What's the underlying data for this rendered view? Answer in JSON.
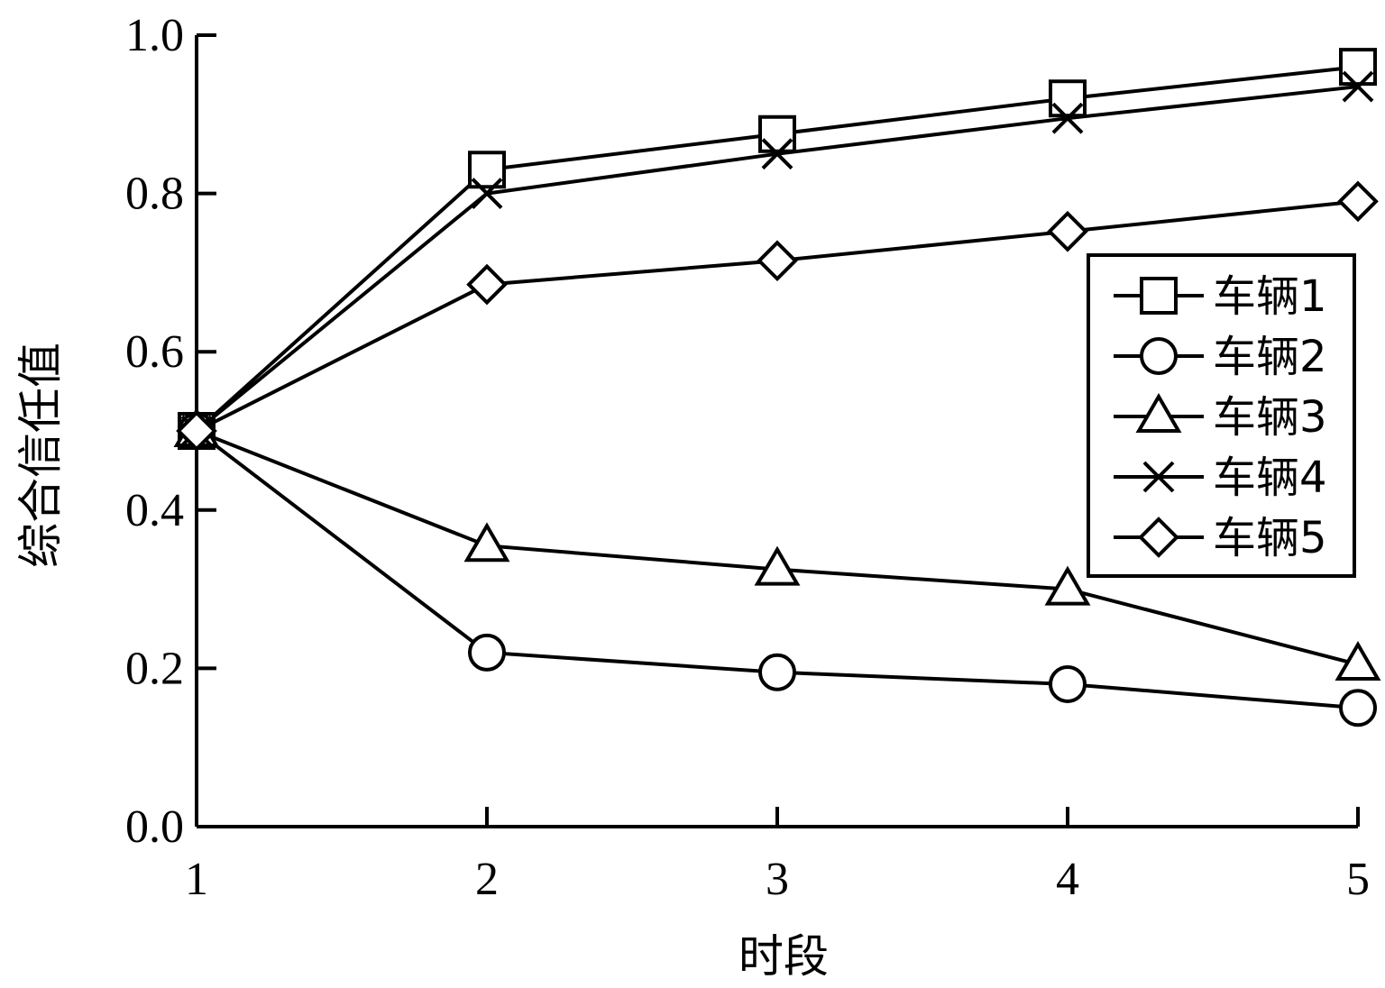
{
  "chart_data": {
    "type": "line",
    "title": "",
    "xlabel": "时段",
    "ylabel": "综合信任值",
    "x": [
      1,
      2,
      3,
      4,
      5
    ],
    "xticks": [
      "1",
      "2",
      "3",
      "4",
      "5"
    ],
    "yticks": [
      "0.0",
      "0.2",
      "0.4",
      "0.6",
      "0.8",
      "1.0"
    ],
    "ylim": [
      0,
      1
    ],
    "xlim": [
      1,
      5
    ],
    "grid": false,
    "legend_position": "right",
    "series": [
      {
        "name": "车辆1",
        "marker": "square",
        "values": [
          0.5,
          0.83,
          0.875,
          0.92,
          0.96
        ]
      },
      {
        "name": "车辆2",
        "marker": "circle",
        "values": [
          0.5,
          0.22,
          0.195,
          0.18,
          0.15
        ]
      },
      {
        "name": "车辆3",
        "marker": "triangle",
        "values": [
          0.5,
          0.355,
          0.325,
          0.3,
          0.205
        ]
      },
      {
        "name": "车辆4",
        "marker": "x",
        "values": [
          0.5,
          0.8,
          0.85,
          0.895,
          0.935
        ]
      },
      {
        "name": "车辆5",
        "marker": "diamond",
        "values": [
          0.5,
          0.685,
          0.715,
          0.752,
          0.79
        ]
      }
    ]
  }
}
